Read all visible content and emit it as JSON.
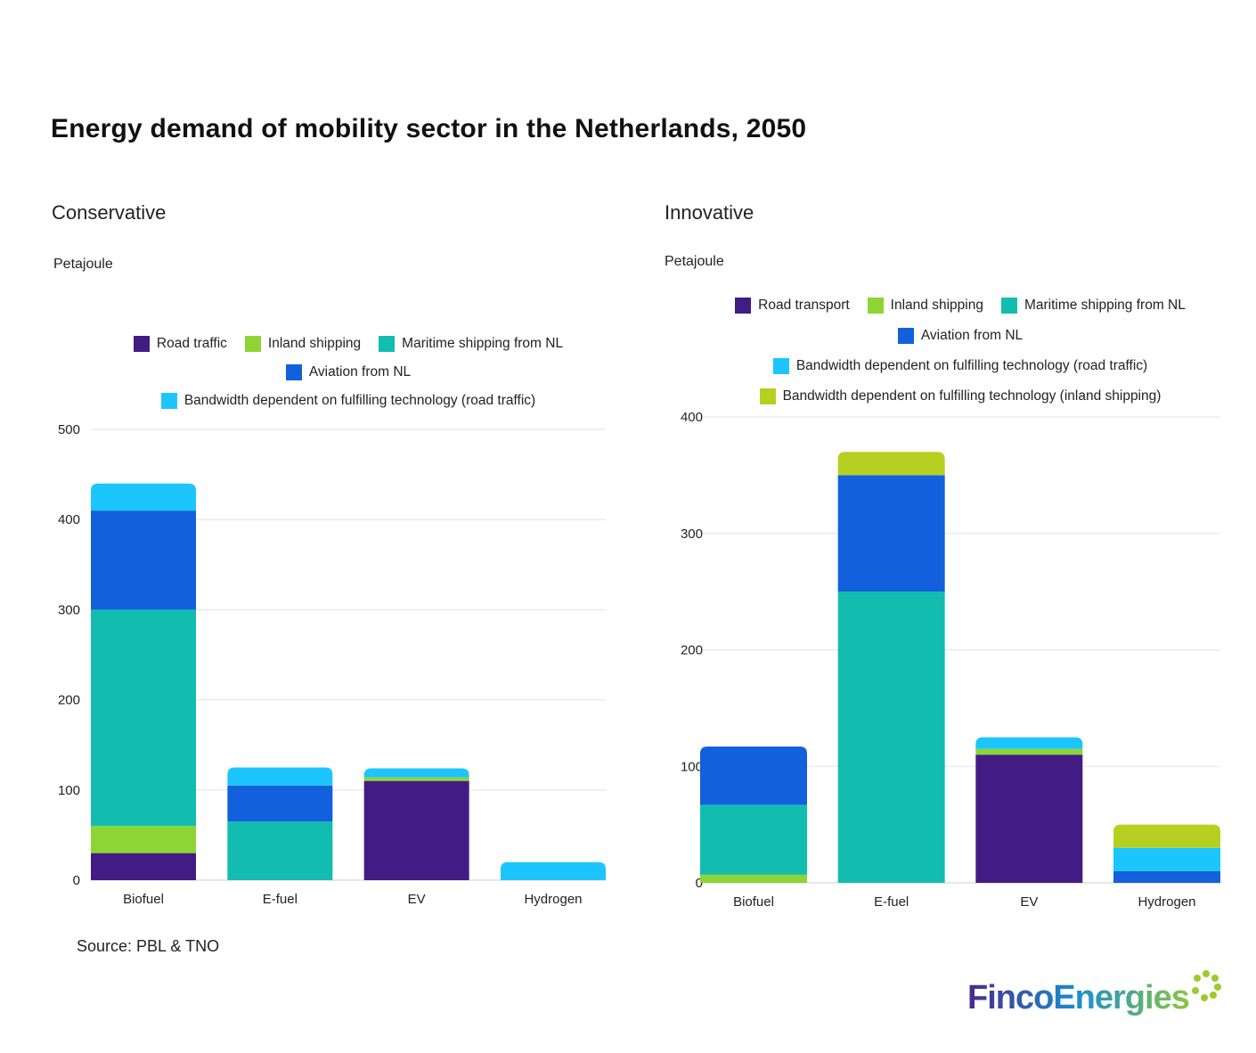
{
  "title": "Energy demand of mobility sector in the Netherlands, 2050",
  "source": "Source: PBL & TNO",
  "logo_text": "FincoEnergies",
  "chart_data": [
    {
      "type": "bar",
      "stacked": true,
      "subtitle": "Conservative",
      "ylabel": "Petajoule",
      "ylim": [
        0,
        500
      ],
      "yticks": [
        0,
        100,
        200,
        300,
        400,
        500
      ],
      "grid": true,
      "legend_position": "top",
      "categories": [
        "Biofuel",
        "E-fuel",
        "EV",
        "Hydrogen"
      ],
      "series": [
        {
          "name": "Road traffic",
          "color": "#421C84",
          "values": [
            30,
            0,
            110,
            0
          ]
        },
        {
          "name": "Inland shipping",
          "color": "#8ED435",
          "values": [
            30,
            0,
            4,
            0
          ]
        },
        {
          "name": "Maritime shipping from NL",
          "color": "#12BDB0",
          "values": [
            240,
            65,
            0,
            0
          ]
        },
        {
          "name": "Aviation from NL",
          "color": "#1360DC",
          "values": [
            110,
            40,
            0,
            0
          ]
        },
        {
          "name": "Bandwidth dependent on fulfilling technology (road traffic)",
          "color": "#1CC6FC",
          "values": [
            30,
            20,
            10,
            20
          ]
        }
      ],
      "legend_rows": [
        [
          0,
          1,
          2
        ],
        [
          3
        ],
        [
          4
        ]
      ]
    },
    {
      "type": "bar",
      "stacked": true,
      "subtitle": "Innovative",
      "ylabel": "Petajoule",
      "ylim": [
        0,
        400
      ],
      "yticks": [
        0,
        100,
        200,
        300,
        400
      ],
      "grid": true,
      "legend_position": "top",
      "categories": [
        "Biofuel",
        "E-fuel",
        "EV",
        "Hydrogen"
      ],
      "series": [
        {
          "name": "Road transport",
          "color": "#421C84",
          "values": [
            0,
            0,
            110,
            0
          ]
        },
        {
          "name": "Inland shipping",
          "color": "#8ED435",
          "values": [
            7,
            0,
            5,
            0
          ]
        },
        {
          "name": "Maritime shipping from NL",
          "color": "#12BDB0",
          "values": [
            60,
            250,
            0,
            0
          ]
        },
        {
          "name": "Aviation from NL",
          "color": "#1360DC",
          "values": [
            50,
            100,
            0,
            10
          ]
        },
        {
          "name": "Bandwidth dependent on fulfilling technology (road traffic)",
          "color": "#1CC6FC",
          "values": [
            0,
            0,
            10,
            20
          ]
        },
        {
          "name": "Bandwidth dependent on fulfilling technology (inland shipping)",
          "color": "#B5D021",
          "values": [
            0,
            20,
            0,
            20
          ]
        }
      ],
      "legend_rows": [
        [
          0,
          1,
          2
        ],
        [
          3
        ],
        [
          4
        ],
        [
          5
        ]
      ]
    }
  ]
}
